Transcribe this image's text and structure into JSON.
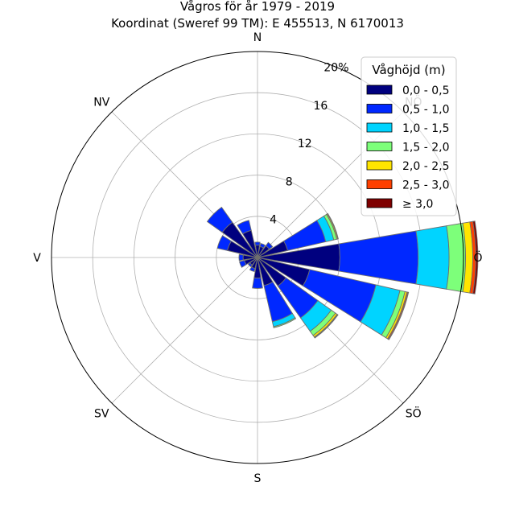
{
  "chart_data": {
    "type": "windrose",
    "title": "Vågros för år 1979 - 2019",
    "subtitle": "Koordinat (Sweref 99 TM): E 455513, N 6170013",
    "directions": [
      "N",
      "NNÖ",
      "NÖ",
      "ÖNÖ",
      "Ö",
      "ÖSÖ",
      "SÖ",
      "SSÖ",
      "S",
      "SSV",
      "SV",
      "VSV",
      "V",
      "VNV",
      "NV",
      "NNV"
    ],
    "direction_angles_deg": [
      0,
      22.5,
      45,
      67.5,
      90,
      112.5,
      135,
      157.5,
      180,
      202.5,
      225,
      247.5,
      270,
      292.5,
      315,
      337.5
    ],
    "compass_labels": [
      "N",
      "NÖ",
      "Ö",
      "SÖ",
      "S",
      "SV",
      "V",
      "NV"
    ],
    "radial_ticks": [
      4,
      8,
      12,
      16,
      20
    ],
    "radial_tick_labels": [
      "4",
      "8",
      "12",
      "16",
      "20%"
    ],
    "rmax": 20,
    "legend": {
      "title": "Våghöjd (m)",
      "placement": "top-right",
      "entries": [
        "0,0 - 0,5",
        "0,5 - 1,0",
        "1,0 - 1,5",
        "1,5 - 2,0",
        "2,0 - 2,5",
        "2,5 - 3,0",
        "≥ 3,0"
      ]
    },
    "colors": [
      "#00007f",
      "#0028ff",
      "#00d4ff",
      "#7dff7a",
      "#ffe500",
      "#ff4000",
      "#7f0000"
    ],
    "series": [
      {
        "name": "0,0 - 0,5",
        "values": [
          1.2,
          1.1,
          1.4,
          3.0,
          8.0,
          5.2,
          3.4,
          2.8,
          2.0,
          1.1,
          0.9,
          1.3,
          1.4,
          3.0,
          4.2,
          2.7
        ]
      },
      {
        "name": "0,5 - 1,0",
        "values": [
          0.3,
          0.3,
          0.4,
          3.8,
          7.6,
          6.6,
          3.8,
          3.6,
          1.0,
          0.3,
          0.2,
          0.5,
          0.4,
          1.0,
          1.8,
          1.0
        ]
      },
      {
        "name": "1,0 - 1,5",
        "values": [
          0,
          0,
          0,
          0.8,
          3.0,
          2.4,
          1.6,
          0.5,
          0,
          0,
          0,
          0,
          0,
          0,
          0,
          0
        ]
      },
      {
        "name": "1,5 - 2,0",
        "values": [
          0,
          0,
          0,
          0.3,
          1.6,
          0.5,
          0.5,
          0.1,
          0,
          0,
          0,
          0,
          0,
          0,
          0,
          0
        ]
      },
      {
        "name": "2,0 - 2,5",
        "values": [
          0,
          0,
          0,
          0.1,
          0.7,
          0.2,
          0.2,
          0,
          0,
          0,
          0,
          0,
          0,
          0,
          0,
          0
        ]
      },
      {
        "name": "2,5 - 3,0",
        "values": [
          0,
          0,
          0,
          0.05,
          0.3,
          0.1,
          0.05,
          0,
          0,
          0,
          0,
          0,
          0,
          0,
          0,
          0
        ]
      },
      {
        "name": "≥ 3,0",
        "values": [
          0,
          0,
          0,
          0,
          0.2,
          0.05,
          0.05,
          0,
          0,
          0,
          0,
          0,
          0,
          0,
          0,
          0
        ]
      }
    ],
    "grid": true
  }
}
